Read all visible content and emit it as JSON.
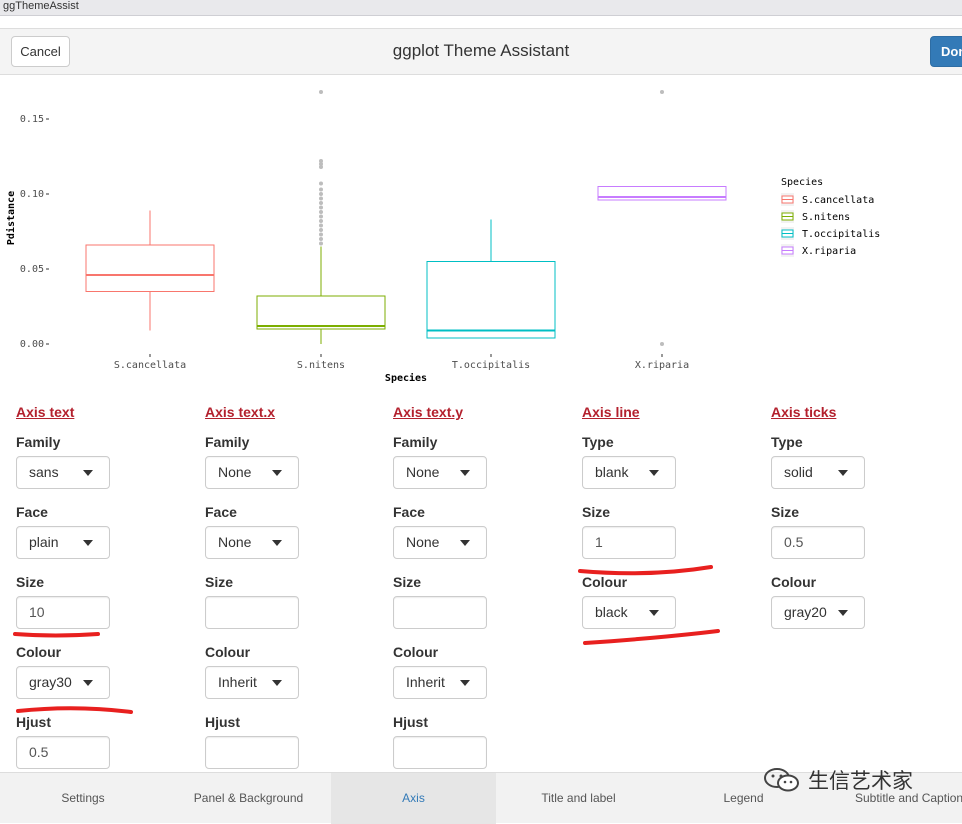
{
  "window": {
    "title": "ggThemeAssist"
  },
  "header": {
    "cancel_label": "Cancel",
    "title": "ggplot Theme Assistant",
    "done_label": "Done"
  },
  "colors": {
    "section_title": "#b3202d",
    "done_button": "#337ab7",
    "active_tab_text": "#337ab7",
    "annotation_marker": "#e8201f"
  },
  "chart_data": {
    "type": "box",
    "xlabel": "Species",
    "ylabel": "Pdistance",
    "ylim": [
      -0.01,
      0.18
    ],
    "yticks": [
      0.0,
      0.05,
      0.1,
      0.15
    ],
    "ytick_labels": [
      "0.00",
      "0.05",
      "0.10",
      "0.15"
    ],
    "categories": [
      "S.cancellata",
      "S.nitens",
      "T.occipitalis",
      "X.riparia"
    ],
    "colors": [
      "#f8766d",
      "#7cae00",
      "#00bfc4",
      "#c77cff"
    ],
    "boxes": [
      {
        "whisker_low": 0.009,
        "q1": 0.035,
        "median": 0.046,
        "q3": 0.066,
        "whisker_high": 0.089,
        "outliers": []
      },
      {
        "whisker_low": 0.0,
        "q1": 0.01,
        "median": 0.012,
        "q3": 0.032,
        "whisker_high": 0.065,
        "outliers": [
          0.067,
          0.07,
          0.073,
          0.076,
          0.079,
          0.082,
          0.085,
          0.088,
          0.091,
          0.094,
          0.097,
          0.1,
          0.103,
          0.107,
          0.118,
          0.12,
          0.122,
          0.168
        ]
      },
      {
        "whisker_low": 0.004,
        "q1": 0.004,
        "median": 0.009,
        "q3": 0.055,
        "whisker_high": 0.083,
        "outliers": []
      },
      {
        "whisker_low": 0.096,
        "q1": 0.096,
        "median": 0.098,
        "q3": 0.105,
        "whisker_high": 0.105,
        "outliers": [
          0.0,
          0.168
        ]
      }
    ],
    "legend": {
      "title": "Species",
      "position": "right",
      "entries": [
        "S.cancellata",
        "S.nitens",
        "T.occipitalis",
        "X.riparia"
      ]
    }
  },
  "settings": {
    "axis_text": {
      "title": "Axis text",
      "family_label": "Family",
      "family_value": "sans",
      "face_label": "Face",
      "face_value": "plain",
      "size_label": "Size",
      "size_value": "10",
      "colour_label": "Colour",
      "colour_value": "gray30",
      "hjust_label": "Hjust",
      "hjust_value": "0.5"
    },
    "axis_text_x": {
      "title": "Axis text.x",
      "family_label": "Family",
      "family_value": "None",
      "face_label": "Face",
      "face_value": "None",
      "size_label": "Size",
      "size_value": "",
      "colour_label": "Colour",
      "colour_value": "Inherit",
      "hjust_label": "Hjust",
      "hjust_value": ""
    },
    "axis_text_y": {
      "title": "Axis text.y",
      "family_label": "Family",
      "family_value": "None",
      "face_label": "Face",
      "face_value": "None",
      "size_label": "Size",
      "size_value": "",
      "colour_label": "Colour",
      "colour_value": "Inherit",
      "hjust_label": "Hjust",
      "hjust_value": ""
    },
    "axis_line": {
      "title": "Axis line",
      "type_label": "Type",
      "type_value": "blank",
      "size_label": "Size",
      "size_value": "1",
      "colour_label": "Colour",
      "colour_value": "black"
    },
    "axis_ticks": {
      "title": "Axis ticks",
      "type_label": "Type",
      "type_value": "solid",
      "size_label": "Size",
      "size_value": "0.5",
      "colour_label": "Colour",
      "colour_value": "gray20"
    }
  },
  "tabs": [
    {
      "label": "Settings",
      "active": false
    },
    {
      "label": "Panel & Background",
      "active": false
    },
    {
      "label": "Axis",
      "active": true
    },
    {
      "label": "Title and label",
      "active": false
    },
    {
      "label": "Legend",
      "active": false
    },
    {
      "label": "Subtitle and Caption",
      "active": false
    }
  ],
  "watermark": {
    "text": "生信艺术家",
    "icon": "wechat-icon"
  }
}
